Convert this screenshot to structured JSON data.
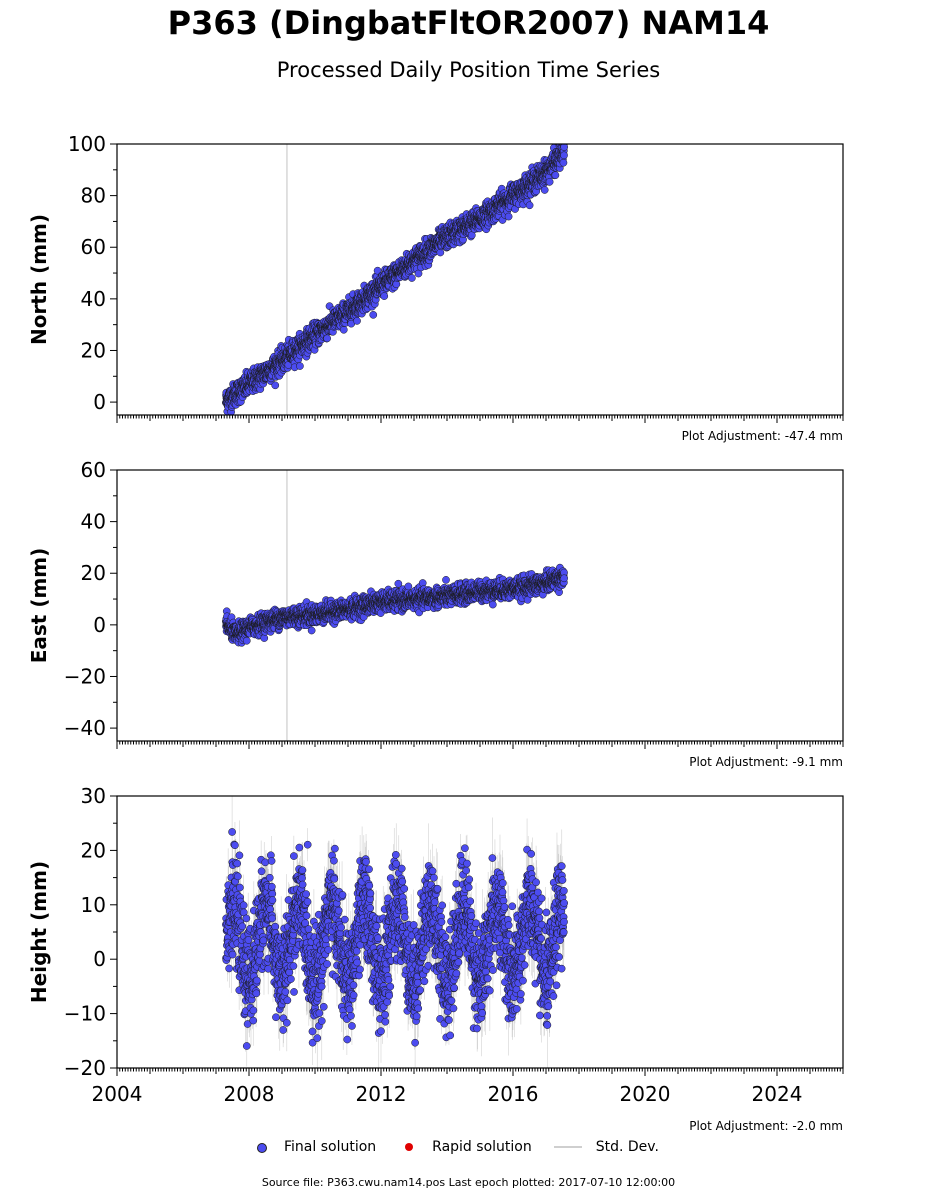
{
  "title": "P363 (DingbatFltOR2007) NAM14",
  "subtitle": "Processed Daily Position Time Series",
  "source_note": "Source file: P363.cwu.nam14.pos  Last epoch plotted: 2017-07-10 12:00:00",
  "legend": {
    "final": "Final solution",
    "rapid": "Rapid solution",
    "std": "Std. Dev."
  },
  "colors": {
    "final_solution": "#4c4cf0",
    "rapid_solution": "#e00000",
    "std_dev": "#9a9a9a",
    "event_line": "#cccccc"
  },
  "chart_data": [
    {
      "type": "scatter",
      "ylabel": "North (mm)",
      "xlim": [
        2004,
        2026
      ],
      "ylim": [
        -5,
        100
      ],
      "yticks": [
        0,
        20,
        40,
        60,
        80,
        100
      ],
      "adjustment": "Plot Adjustment: -47.4 mm",
      "event_line_x": 2009.15,
      "series": [
        {
          "trend": [
            [
              2007.3,
              0.5
            ],
            [
              2008.0,
              7
            ],
            [
              2009.0,
              16
            ],
            [
              2010.0,
              26
            ],
            [
              2011.0,
              35
            ],
            [
              2012.0,
              45
            ],
            [
              2013.0,
              55
            ],
            [
              2014.0,
              64
            ],
            [
              2015.0,
              71
            ],
            [
              2016.0,
              80
            ],
            [
              2017.0,
              89
            ],
            [
              2017.55,
              97
            ]
          ],
          "scatter_mm": 2.2,
          "std_mm": 1.2
        }
      ]
    },
    {
      "type": "scatter",
      "ylabel": "East (mm)",
      "xlim": [
        2004,
        2026
      ],
      "ylim": [
        -45,
        60
      ],
      "yticks": [
        -40,
        -20,
        0,
        20,
        40,
        60
      ],
      "adjustment": "Plot Adjustment: -9.1 mm",
      "event_line_x": 2009.15,
      "series": [
        {
          "trend": [
            [
              2007.3,
              0.5
            ],
            [
              2007.6,
              -4
            ],
            [
              2008.0,
              -1
            ],
            [
              2009.0,
              3
            ],
            [
              2010.0,
              4
            ],
            [
              2011.0,
              6
            ],
            [
              2012.0,
              9
            ],
            [
              2013.0,
              10
            ],
            [
              2014.0,
              11
            ],
            [
              2015.0,
              13
            ],
            [
              2016.0,
              14
            ],
            [
              2016.9,
              16
            ],
            [
              2017.55,
              19
            ]
          ],
          "scatter_mm": 1.8,
          "std_mm": 1.0
        }
      ]
    },
    {
      "type": "scatter",
      "ylabel": "Height (mm)",
      "xlim": [
        2004,
        2026
      ],
      "ylim": [
        -20,
        30
      ],
      "yticks": [
        -20,
        -10,
        0,
        10,
        20,
        30
      ],
      "xticks": [
        2004,
        2008,
        2012,
        2016,
        2020,
        2024
      ],
      "adjustment": "Plot Adjustment: -2.0 mm",
      "series": [
        {
          "trend": [
            [
              2007.3,
              3
            ],
            [
              2017.55,
              3
            ]
          ],
          "seasonal_amplitude_mm": 7,
          "scatter_mm": 4.5,
          "std_mm": 5
        }
      ]
    }
  ]
}
